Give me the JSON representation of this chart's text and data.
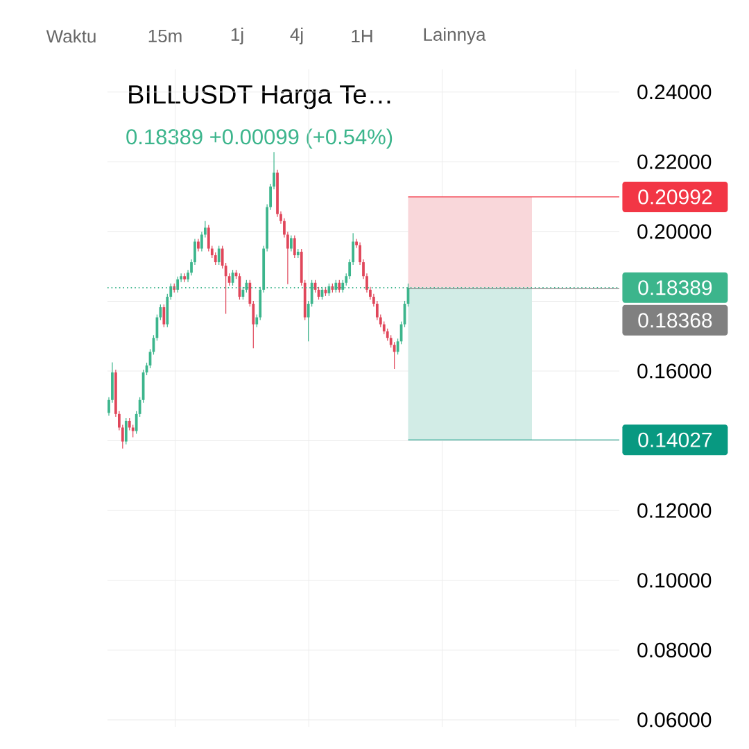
{
  "chart_data": {
    "type": "candlestick",
    "title": "BILLUSDT Harga Te…",
    "subtitle": "0.18389  +0.00099 (+0.54%)",
    "annotations": [
      "Waktu",
      "15m",
      "1j",
      "4j",
      "1H",
      "Lainnya"
    ],
    "categories": [
      null,
      null,
      null,
      null,
      null,
      null,
      null,
      null,
      null,
      null,
      null,
      null,
      null,
      null,
      null,
      null,
      null,
      null,
      null,
      null,
      null,
      null,
      null,
      null,
      null,
      null,
      null,
      null,
      null,
      null,
      null,
      null,
      null,
      null,
      null,
      null,
      null,
      null,
      null,
      null,
      null,
      null,
      null,
      null,
      null,
      null,
      null,
      null,
      null,
      null,
      null,
      null,
      null,
      null,
      null,
      null,
      null,
      null,
      null,
      null,
      null,
      null,
      null,
      null,
      null,
      null,
      null,
      null,
      null,
      null,
      null,
      null,
      null,
      null,
      null,
      null,
      null,
      null,
      null,
      null,
      null,
      null,
      null,
      null,
      null,
      null,
      null,
      null,
      null,
      null,
      null,
      null,
      null,
      null,
      null,
      null,
      null,
      null,
      null,
      null,
      null,
      null,
      null,
      null,
      null,
      null,
      null,
      null,
      null,
      null,
      null,
      null,
      null,
      null,
      null,
      null,
      null,
      null,
      null,
      null,
      null,
      null,
      null,
      null,
      null,
      null,
      null,
      null,
      null,
      null,
      null,
      null,
      null,
      null,
      null,
      null,
      null,
      null,
      null,
      null,
      null,
      null,
      null,
      null,
      null,
      null,
      null,
      null,
      null
    ],
    "ohlc": [
      [
        0.148,
        0.1525,
        0.1472,
        0.1517
      ],
      [
        0.1517,
        0.1625,
        0.1509,
        0.1596
      ],
      [
        0.1596,
        0.1604,
        0.1469,
        0.1477
      ],
      [
        0.1477,
        0.1485,
        0.143,
        0.1438
      ],
      [
        0.1438,
        0.1446,
        0.1378,
        0.1398
      ],
      [
        0.1398,
        0.1465,
        0.139,
        0.1457
      ],
      [
        0.1457,
        0.1465,
        0.143,
        0.1438
      ],
      [
        0.1438,
        0.1446,
        0.141,
        0.1428
      ],
      [
        0.1428,
        0.1485,
        0.142,
        0.1477
      ],
      [
        0.1477,
        0.1525,
        0.1469,
        0.1517
      ],
      [
        0.1517,
        0.1604,
        0.1509,
        0.1596
      ],
      [
        0.1596,
        0.1624,
        0.1588,
        0.1616
      ],
      [
        0.1616,
        0.1663,
        0.1608,
        0.1655
      ],
      [
        0.1655,
        0.1703,
        0.1647,
        0.1695
      ],
      [
        0.1695,
        0.1762,
        0.1687,
        0.1754
      ],
      [
        0.1754,
        0.1791,
        0.1746,
        0.1783
      ],
      [
        0.1783,
        0.1791,
        0.1726,
        0.1734
      ],
      [
        0.1734,
        0.1821,
        0.1726,
        0.1813
      ],
      [
        0.1813,
        0.1851,
        0.1805,
        0.1843
      ],
      [
        0.1843,
        0.1851,
        0.1825,
        0.1833
      ],
      [
        0.1833,
        0.1871,
        0.1825,
        0.1863
      ],
      [
        0.1863,
        0.188,
        0.1855,
        0.1872
      ],
      [
        0.1872,
        0.188,
        0.1855,
        0.1863
      ],
      [
        0.1863,
        0.189,
        0.1855,
        0.1882
      ],
      [
        0.1882,
        0.192,
        0.1874,
        0.1912
      ],
      [
        0.1912,
        0.1979,
        0.1904,
        0.1971
      ],
      [
        0.1971,
        0.1979,
        0.1943,
        0.1951
      ],
      [
        0.1951,
        0.1999,
        0.1943,
        0.1991
      ],
      [
        0.1991,
        0.203,
        0.1983,
        0.2011
      ],
      [
        0.2011,
        0.2019,
        0.1943,
        0.1951
      ],
      [
        0.1951,
        0.1959,
        0.1924,
        0.1932
      ],
      [
        0.1932,
        0.194,
        0.1904,
        0.1912
      ],
      [
        0.1912,
        0.1959,
        0.1904,
        0.1951
      ],
      [
        0.1951,
        0.1959,
        0.1894,
        0.1902
      ],
      [
        0.1902,
        0.191,
        0.1764,
        0.1872
      ],
      [
        0.1872,
        0.188,
        0.1845,
        0.1853
      ],
      [
        0.1853,
        0.189,
        0.1845,
        0.1882
      ],
      [
        0.1882,
        0.189,
        0.1864,
        0.1872
      ],
      [
        0.1872,
        0.188,
        0.1805,
        0.1813
      ],
      [
        0.1813,
        0.1841,
        0.1805,
        0.1833
      ],
      [
        0.1833,
        0.1861,
        0.1825,
        0.1853
      ],
      [
        0.1853,
        0.1861,
        0.1785,
        0.1793
      ],
      [
        0.1793,
        0.1801,
        0.1665,
        0.1734
      ],
      [
        0.1734,
        0.1762,
        0.1726,
        0.1754
      ],
      [
        0.1754,
        0.1841,
        0.1746,
        0.1833
      ],
      [
        0.1833,
        0.1959,
        0.1825,
        0.1951
      ],
      [
        0.1951,
        0.2078,
        0.1943,
        0.207
      ],
      [
        0.207,
        0.2137,
        0.2062,
        0.2129
      ],
      [
        0.2129,
        0.2228,
        0.2121,
        0.2169
      ],
      [
        0.2169,
        0.2177,
        0.2042,
        0.205
      ],
      [
        0.205,
        0.2058,
        0.2022,
        0.203
      ],
      [
        0.203,
        0.2038,
        0.1983,
        0.1991
      ],
      [
        0.1991,
        0.1999,
        0.1849,
        0.1951
      ],
      [
        0.1951,
        0.1989,
        0.1943,
        0.1981
      ],
      [
        0.1981,
        0.1989,
        0.1924,
        0.1932
      ],
      [
        0.1932,
        0.195,
        0.1924,
        0.1942
      ],
      [
        0.1942,
        0.195,
        0.1845,
        0.1853
      ],
      [
        0.1853,
        0.1861,
        0.1746,
        0.1754
      ],
      [
        0.1754,
        0.1801,
        0.1685,
        0.1793
      ],
      [
        0.1793,
        0.1861,
        0.1785,
        0.1853
      ],
      [
        0.1853,
        0.1861,
        0.1825,
        0.1833
      ],
      [
        0.1833,
        0.1841,
        0.1805,
        0.1813
      ],
      [
        0.1813,
        0.1841,
        0.1805,
        0.1833
      ],
      [
        0.1833,
        0.1841,
        0.1815,
        0.1823
      ],
      [
        0.1823,
        0.1851,
        0.1815,
        0.1843
      ],
      [
        0.1843,
        0.1851,
        0.1825,
        0.1833
      ],
      [
        0.1833,
        0.1861,
        0.1825,
        0.1853
      ],
      [
        0.1853,
        0.1861,
        0.1825,
        0.1833
      ],
      [
        0.1833,
        0.1861,
        0.1825,
        0.1853
      ],
      [
        0.1853,
        0.188,
        0.1845,
        0.1872
      ],
      [
        0.1872,
        0.192,
        0.1864,
        0.1912
      ],
      [
        0.1912,
        0.1995,
        0.1904,
        0.1971
      ],
      [
        0.1971,
        0.1979,
        0.1953,
        0.1961
      ],
      [
        0.1961,
        0.1969,
        0.1904,
        0.1912
      ],
      [
        0.1912,
        0.192,
        0.1864,
        0.1872
      ],
      [
        0.1872,
        0.188,
        0.1825,
        0.1833
      ],
      [
        0.1833,
        0.1841,
        0.1805,
        0.1813
      ],
      [
        0.1813,
        0.1821,
        0.1785,
        0.1793
      ],
      [
        0.1793,
        0.1801,
        0.1746,
        0.1754
      ],
      [
        0.1754,
        0.1762,
        0.1726,
        0.1734
      ],
      [
        0.1734,
        0.1742,
        0.1706,
        0.1714
      ],
      [
        0.1714,
        0.1722,
        0.1687,
        0.1695
      ],
      [
        0.1695,
        0.1703,
        0.1667,
        0.1675
      ],
      [
        0.1675,
        0.1683,
        0.1606,
        0.1655
      ],
      [
        0.1655,
        0.1693,
        0.1647,
        0.1685
      ],
      [
        0.1685,
        0.1742,
        0.1677,
        0.1734
      ],
      [
        0.1734,
        0.1801,
        0.1726,
        0.1793
      ],
      [
        0.1793,
        0.1851,
        0.1785,
        0.1839
      ],
      null,
      null,
      null,
      null,
      null,
      null,
      null,
      null,
      null,
      null,
      null,
      null,
      null,
      null,
      null,
      null,
      null,
      null,
      null,
      null,
      null,
      null,
      null,
      null,
      null,
      null,
      null,
      null,
      null,
      null,
      null,
      null,
      null,
      null,
      null,
      null,
      null,
      null,
      null,
      null,
      null,
      null,
      null,
      null,
      null,
      null,
      null,
      null,
      null,
      null,
      null,
      null,
      null,
      null,
      null,
      null,
      null,
      null,
      null,
      null,
      null
    ],
    "ylim": [
      0.058,
      0.2465
    ],
    "yticks": [
      {
        "value": 0.06,
        "label": "0.06000"
      },
      {
        "value": 0.08,
        "label": "0.08000"
      },
      {
        "value": 0.1,
        "label": "0.10000"
      },
      {
        "value": 0.12,
        "label": "0.12000"
      },
      {
        "value": 0.14,
        "label": null
      },
      {
        "value": 0.16,
        "label": "0.16000"
      },
      {
        "value": 0.18,
        "label": null
      },
      {
        "value": 0.2,
        "label": "0.20000"
      },
      {
        "value": 0.22,
        "label": "0.22000"
      },
      {
        "value": 0.24,
        "label": "0.24000"
      }
    ],
    "tick_labels": "y",
    "grid": true,
    "ref_lines": [
      {
        "axis": "y",
        "value": 0.20992,
        "label": "0.20992",
        "color": "#f23645",
        "line_style": "solid"
      },
      {
        "axis": "y",
        "value": 0.18389,
        "label": "0.18389",
        "color": "#3cb58c",
        "line_style": "dotted"
      },
      {
        "axis": "y",
        "value": 0.18368,
        "label": "0.18368",
        "color": "#808080",
        "line_style": "solid"
      },
      {
        "axis": "y",
        "value": 0.14027,
        "label": "0.14027",
        "color": "#089981",
        "line_style": "solid"
      }
    ],
    "bands": [
      {
        "axis": "y",
        "from": 0.18389,
        "to": 0.20992,
        "color": "#f9d7da"
      },
      {
        "axis": "y",
        "from": 0.14027,
        "to": 0.18389,
        "color": "#d2ece6"
      }
    ]
  }
}
